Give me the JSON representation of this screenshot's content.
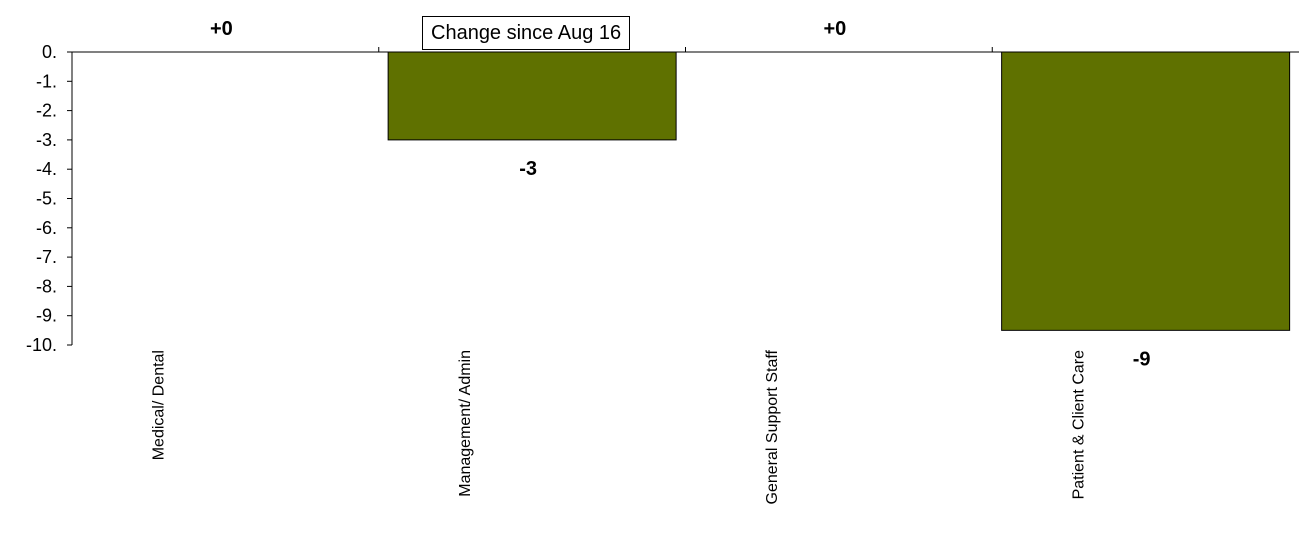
{
  "chart_data": {
    "type": "bar",
    "categories": [
      "Medical/ Dental",
      "Management/ Admin",
      "General Support Staff",
      "Patient & Client Care"
    ],
    "values": [
      0,
      -3,
      0,
      -9.5
    ],
    "data_labels": [
      "+0",
      "-3",
      "+0",
      "-9"
    ],
    "ylim": [
      -10,
      0
    ],
    "yticks": [
      0,
      -1,
      -2,
      -3,
      -4,
      -5,
      -6,
      -7,
      -8,
      -9,
      -10
    ],
    "ytick_labels": [
      "0.",
      "-1.",
      "-2.",
      "-3.",
      "-4.",
      "-5.",
      "-6.",
      "-7.",
      "-8.",
      "-9.",
      "-10."
    ],
    "legend_text": "Change since Aug 16",
    "legend_placement": "top-center",
    "bar_color": "#5f7100",
    "grid": false
  }
}
